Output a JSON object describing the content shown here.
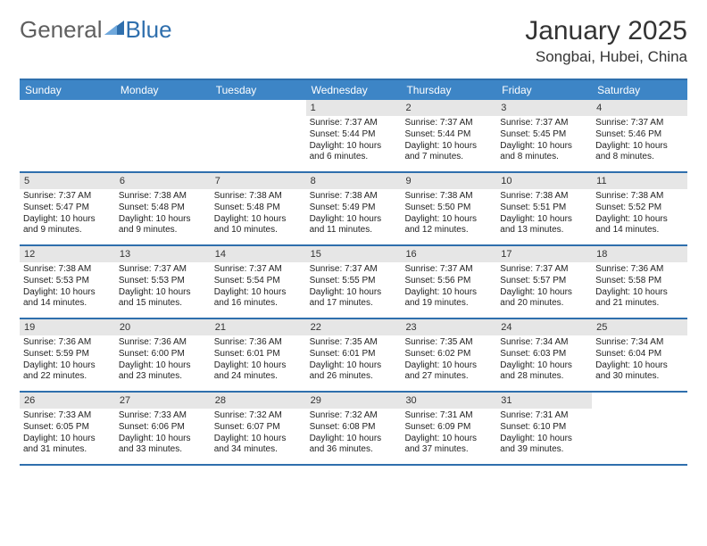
{
  "logo": {
    "text1": "General",
    "text2": "Blue"
  },
  "title": "January 2025",
  "location": "Songbai, Hubei, China",
  "colors": {
    "header_bg": "#3d85c6",
    "border": "#2f6fad",
    "daynum_bg": "#e6e6e6",
    "text": "#222222",
    "logo_gray": "#5f5f5f",
    "logo_blue": "#2f6fad",
    "page_bg": "#ffffff"
  },
  "weekdays": [
    "Sunday",
    "Monday",
    "Tuesday",
    "Wednesday",
    "Thursday",
    "Friday",
    "Saturday"
  ],
  "weeks": [
    [
      {
        "num": "",
        "sunrise": "",
        "sunset": "",
        "daylight": ""
      },
      {
        "num": "",
        "sunrise": "",
        "sunset": "",
        "daylight": ""
      },
      {
        "num": "",
        "sunrise": "",
        "sunset": "",
        "daylight": ""
      },
      {
        "num": "1",
        "sunrise": "Sunrise: 7:37 AM",
        "sunset": "Sunset: 5:44 PM",
        "daylight": "Daylight: 10 hours and 6 minutes."
      },
      {
        "num": "2",
        "sunrise": "Sunrise: 7:37 AM",
        "sunset": "Sunset: 5:44 PM",
        "daylight": "Daylight: 10 hours and 7 minutes."
      },
      {
        "num": "3",
        "sunrise": "Sunrise: 7:37 AM",
        "sunset": "Sunset: 5:45 PM",
        "daylight": "Daylight: 10 hours and 8 minutes."
      },
      {
        "num": "4",
        "sunrise": "Sunrise: 7:37 AM",
        "sunset": "Sunset: 5:46 PM",
        "daylight": "Daylight: 10 hours and 8 minutes."
      }
    ],
    [
      {
        "num": "5",
        "sunrise": "Sunrise: 7:37 AM",
        "sunset": "Sunset: 5:47 PM",
        "daylight": "Daylight: 10 hours and 9 minutes."
      },
      {
        "num": "6",
        "sunrise": "Sunrise: 7:38 AM",
        "sunset": "Sunset: 5:48 PM",
        "daylight": "Daylight: 10 hours and 9 minutes."
      },
      {
        "num": "7",
        "sunrise": "Sunrise: 7:38 AM",
        "sunset": "Sunset: 5:48 PM",
        "daylight": "Daylight: 10 hours and 10 minutes."
      },
      {
        "num": "8",
        "sunrise": "Sunrise: 7:38 AM",
        "sunset": "Sunset: 5:49 PM",
        "daylight": "Daylight: 10 hours and 11 minutes."
      },
      {
        "num": "9",
        "sunrise": "Sunrise: 7:38 AM",
        "sunset": "Sunset: 5:50 PM",
        "daylight": "Daylight: 10 hours and 12 minutes."
      },
      {
        "num": "10",
        "sunrise": "Sunrise: 7:38 AM",
        "sunset": "Sunset: 5:51 PM",
        "daylight": "Daylight: 10 hours and 13 minutes."
      },
      {
        "num": "11",
        "sunrise": "Sunrise: 7:38 AM",
        "sunset": "Sunset: 5:52 PM",
        "daylight": "Daylight: 10 hours and 14 minutes."
      }
    ],
    [
      {
        "num": "12",
        "sunrise": "Sunrise: 7:38 AM",
        "sunset": "Sunset: 5:53 PM",
        "daylight": "Daylight: 10 hours and 14 minutes."
      },
      {
        "num": "13",
        "sunrise": "Sunrise: 7:37 AM",
        "sunset": "Sunset: 5:53 PM",
        "daylight": "Daylight: 10 hours and 15 minutes."
      },
      {
        "num": "14",
        "sunrise": "Sunrise: 7:37 AM",
        "sunset": "Sunset: 5:54 PM",
        "daylight": "Daylight: 10 hours and 16 minutes."
      },
      {
        "num": "15",
        "sunrise": "Sunrise: 7:37 AM",
        "sunset": "Sunset: 5:55 PM",
        "daylight": "Daylight: 10 hours and 17 minutes."
      },
      {
        "num": "16",
        "sunrise": "Sunrise: 7:37 AM",
        "sunset": "Sunset: 5:56 PM",
        "daylight": "Daylight: 10 hours and 19 minutes."
      },
      {
        "num": "17",
        "sunrise": "Sunrise: 7:37 AM",
        "sunset": "Sunset: 5:57 PM",
        "daylight": "Daylight: 10 hours and 20 minutes."
      },
      {
        "num": "18",
        "sunrise": "Sunrise: 7:36 AM",
        "sunset": "Sunset: 5:58 PM",
        "daylight": "Daylight: 10 hours and 21 minutes."
      }
    ],
    [
      {
        "num": "19",
        "sunrise": "Sunrise: 7:36 AM",
        "sunset": "Sunset: 5:59 PM",
        "daylight": "Daylight: 10 hours and 22 minutes."
      },
      {
        "num": "20",
        "sunrise": "Sunrise: 7:36 AM",
        "sunset": "Sunset: 6:00 PM",
        "daylight": "Daylight: 10 hours and 23 minutes."
      },
      {
        "num": "21",
        "sunrise": "Sunrise: 7:36 AM",
        "sunset": "Sunset: 6:01 PM",
        "daylight": "Daylight: 10 hours and 24 minutes."
      },
      {
        "num": "22",
        "sunrise": "Sunrise: 7:35 AM",
        "sunset": "Sunset: 6:01 PM",
        "daylight": "Daylight: 10 hours and 26 minutes."
      },
      {
        "num": "23",
        "sunrise": "Sunrise: 7:35 AM",
        "sunset": "Sunset: 6:02 PM",
        "daylight": "Daylight: 10 hours and 27 minutes."
      },
      {
        "num": "24",
        "sunrise": "Sunrise: 7:34 AM",
        "sunset": "Sunset: 6:03 PM",
        "daylight": "Daylight: 10 hours and 28 minutes."
      },
      {
        "num": "25",
        "sunrise": "Sunrise: 7:34 AM",
        "sunset": "Sunset: 6:04 PM",
        "daylight": "Daylight: 10 hours and 30 minutes."
      }
    ],
    [
      {
        "num": "26",
        "sunrise": "Sunrise: 7:33 AM",
        "sunset": "Sunset: 6:05 PM",
        "daylight": "Daylight: 10 hours and 31 minutes."
      },
      {
        "num": "27",
        "sunrise": "Sunrise: 7:33 AM",
        "sunset": "Sunset: 6:06 PM",
        "daylight": "Daylight: 10 hours and 33 minutes."
      },
      {
        "num": "28",
        "sunrise": "Sunrise: 7:32 AM",
        "sunset": "Sunset: 6:07 PM",
        "daylight": "Daylight: 10 hours and 34 minutes."
      },
      {
        "num": "29",
        "sunrise": "Sunrise: 7:32 AM",
        "sunset": "Sunset: 6:08 PM",
        "daylight": "Daylight: 10 hours and 36 minutes."
      },
      {
        "num": "30",
        "sunrise": "Sunrise: 7:31 AM",
        "sunset": "Sunset: 6:09 PM",
        "daylight": "Daylight: 10 hours and 37 minutes."
      },
      {
        "num": "31",
        "sunrise": "Sunrise: 7:31 AM",
        "sunset": "Sunset: 6:10 PM",
        "daylight": "Daylight: 10 hours and 39 minutes."
      },
      {
        "num": "",
        "sunrise": "",
        "sunset": "",
        "daylight": ""
      }
    ]
  ]
}
